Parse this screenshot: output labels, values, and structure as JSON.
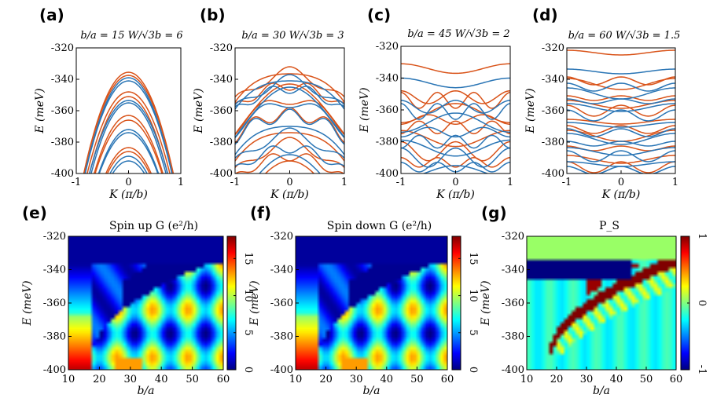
{
  "chart_data": {
    "type": "line",
    "colors": {
      "spin_up": "#d95319",
      "spin_down": "#2a75b5"
    },
    "band_panels": [
      {
        "label": "(a)",
        "title": "b/a = 15   W/√3b = 6",
        "xlabel": "K (π/b)",
        "ylabel": "E (meV)",
        "xlim": [
          -1,
          1
        ],
        "ylim": [
          -400,
          -320
        ],
        "xticks": [
          "-1",
          "0",
          "1"
        ],
        "yticks": [
          "-320",
          "-340",
          "-360",
          "-380",
          "-400"
        ],
        "series": [
          {
            "spin": "up",
            "E0": [
              -335.5,
              -337.5,
              -348,
              -351,
              -363,
              -366,
              -383.5,
              -386,
              -400
            ]
          },
          {
            "spin": "down",
            "E0": [
              -339,
              -341,
              -353.5,
              -355,
              -372,
              -374,
              -389,
              -392
            ]
          }
        ]
      },
      {
        "label": "(b)",
        "title": "b/a = 30   W/√3b = 3",
        "xlabel": "K (π/b)",
        "ylabel": "E (meV)",
        "xlim": [
          -1,
          1
        ],
        "ylim": [
          -400,
          -320
        ],
        "xticks": [
          "-1",
          "0",
          "1"
        ],
        "yticks": [
          "-320",
          "-340",
          "-360",
          "-380",
          "-400"
        ],
        "series": [
          {
            "spin": "up",
            "E0": [
              -333.5,
              -336,
              -344,
              -347,
              -353,
              -362,
              -371,
              -381,
              -389,
              -396
            ]
          },
          {
            "spin": "down",
            "E0": [
              -338,
              -341,
              -346,
              -349,
              -355,
              -363,
              -367,
              -375,
              -384,
              -392
            ]
          }
        ]
      },
      {
        "label": "(c)",
        "title": "b/a = 45   W/√3b = 2",
        "xlabel": "K (π/b)",
        "ylabel": "E (meV)",
        "xlim": [
          -1,
          1
        ],
        "ylim": [
          -400,
          -320
        ],
        "xticks": [
          "-1",
          "0",
          "1"
        ],
        "yticks": [
          "-320",
          "-340",
          "-360",
          "-380",
          "-400"
        ],
        "series": [
          {
            "spin": "up",
            "E0": [
              -334,
              -352,
              -354,
              -362,
              -366,
              -371,
              -378,
              -386,
              -393
            ]
          },
          {
            "spin": "down",
            "E0": [
              -343,
              -358,
              -361,
              -368,
              -374,
              -380,
              -384,
              -390,
              -396,
              -399
            ]
          }
        ]
      },
      {
        "label": "(d)",
        "title": "b/a = 60   W/√3b = 1.5",
        "xlabel": "K (π/b)",
        "ylabel": "E (meV)",
        "xlim": [
          -1,
          1
        ],
        "ylim": [
          -400,
          -320
        ],
        "xticks": [
          "-1",
          "0",
          "1"
        ],
        "yticks": [
          "-320",
          "-340",
          "-360",
          "-380",
          "-400"
        ],
        "series": [
          {
            "spin": "up",
            "E0": [
              -323,
              -341,
              -343,
              -352,
              -356,
              -360,
              -367,
              -372,
              -376,
              -384,
              -391,
              -396
            ]
          },
          {
            "spin": "down",
            "E0": [
              -335,
              -345,
              -349,
              -354,
              -358,
              -363,
              -369,
              -374,
              -378,
              -381,
              -386,
              -389,
              -394,
              -398
            ]
          }
        ]
      }
    ],
    "map_panels": [
      {
        "label": "(e)",
        "title": "Spin up  G (e²/h)",
        "xlabel": "b/a",
        "ylabel": "E (meV)",
        "xlim": [
          10,
          60
        ],
        "ylim": [
          -400,
          -320
        ],
        "xticks": [
          "10",
          "20",
          "30",
          "40",
          "50",
          "60"
        ],
        "yticks": [
          "-320",
          "-340",
          "-360",
          "-380",
          "-400"
        ],
        "colorbar_ticks": [
          "15",
          "10",
          "5",
          "0"
        ],
        "colorbar_range": [
          0,
          18
        ]
      },
      {
        "label": "(f)",
        "title": "Spin down  G (e²/h)",
        "xlabel": "b/a",
        "ylabel": "E (meV)",
        "xlim": [
          10,
          60
        ],
        "ylim": [
          -400,
          -320
        ],
        "xticks": [
          "10",
          "20",
          "30",
          "40",
          "50",
          "60"
        ],
        "yticks": [
          "-320",
          "-340",
          "-360",
          "-380",
          "-400"
        ],
        "colorbar_ticks": [
          "15",
          "10",
          "5",
          "0"
        ],
        "colorbar_range": [
          0,
          18
        ]
      },
      {
        "label": "(g)",
        "title": "P_S",
        "xlabel": "b/a",
        "ylabel": "E (meV)",
        "xlim": [
          10,
          60
        ],
        "ylim": [
          -400,
          -320
        ],
        "xticks": [
          "10",
          "20",
          "30",
          "40",
          "50",
          "60"
        ],
        "yticks": [
          "-320",
          "-340",
          "-360",
          "-380",
          "-400"
        ],
        "colorbar_ticks": [
          "1",
          "0",
          "-1"
        ],
        "colorbar_range": [
          -1,
          1
        ]
      }
    ]
  }
}
